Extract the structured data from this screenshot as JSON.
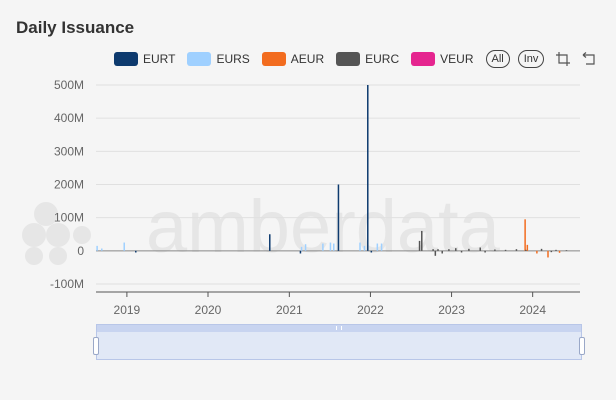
{
  "title": "Daily Issuance",
  "watermark": "amberdata",
  "controls": {
    "all_label": "All",
    "inv_label": "Inv"
  },
  "icons": {
    "box_select": "crop-select-icon",
    "reset": "reset-arrow-icon"
  },
  "chart_data": {
    "type": "bar",
    "title": "Daily Issuance",
    "xlabel": "",
    "ylabel": "",
    "ylim": [
      -100000000,
      500000000
    ],
    "yticks": [
      -100000000,
      0,
      100000000,
      200000000,
      300000000,
      400000000,
      500000000
    ],
    "ytick_labels": [
      "-100M",
      "0",
      "100M",
      "200M",
      "300M",
      "400M",
      "500M"
    ],
    "xlim": [
      "2018-08-15",
      "2024-08-01"
    ],
    "xtick_labels": [
      "2019",
      "2020",
      "2021",
      "2022",
      "2023",
      "2024"
    ],
    "grid": true,
    "legend_position": "top",
    "series": [
      {
        "name": "EURT",
        "color": "#0d3a6e",
        "points": [
          {
            "date": "2019-02-10",
            "value": -5000000
          },
          {
            "date": "2020-10-05",
            "value": 50000000
          },
          {
            "date": "2021-02-20",
            "value": -8000000
          },
          {
            "date": "2021-08-10",
            "value": 200000000
          },
          {
            "date": "2021-12-20",
            "value": 500000000
          },
          {
            "date": "2022-01-05",
            "value": -5000000
          }
        ]
      },
      {
        "name": "EURS",
        "color": "#9fd0ff",
        "points": [
          {
            "date": "2018-08-20",
            "value": 15000000
          },
          {
            "date": "2018-09-10",
            "value": 7000000
          },
          {
            "date": "2018-12-20",
            "value": 25000000
          },
          {
            "date": "2021-02-25",
            "value": 12000000
          },
          {
            "date": "2021-03-15",
            "value": 20000000
          },
          {
            "date": "2021-06-01",
            "value": 22000000
          },
          {
            "date": "2021-07-05",
            "value": 25000000
          },
          {
            "date": "2021-07-20",
            "value": 22000000
          },
          {
            "date": "2021-11-15",
            "value": 25000000
          },
          {
            "date": "2021-12-05",
            "value": 15000000
          },
          {
            "date": "2022-02-01",
            "value": 22000000
          },
          {
            "date": "2022-02-20",
            "value": 22000000
          }
        ]
      },
      {
        "name": "AEUR",
        "color": "#f26c1f",
        "points": [
          {
            "date": "2023-11-28",
            "value": 95000000
          },
          {
            "date": "2023-12-08",
            "value": 18000000
          },
          {
            "date": "2024-01-20",
            "value": -8000000
          },
          {
            "date": "2024-03-10",
            "value": -20000000
          },
          {
            "date": "2024-05-01",
            "value": -6000000
          }
        ]
      },
      {
        "name": "EURC",
        "color": "#555555",
        "points": [
          {
            "date": "2022-08-10",
            "value": 30000000
          },
          {
            "date": "2022-08-20",
            "value": 60000000
          },
          {
            "date": "2022-10-10",
            "value": 5000000
          },
          {
            "date": "2022-10-20",
            "value": -15000000
          },
          {
            "date": "2022-11-01",
            "value": 5000000
          },
          {
            "date": "2022-11-20",
            "value": -8000000
          },
          {
            "date": "2022-12-20",
            "value": 5000000
          },
          {
            "date": "2023-01-20",
            "value": 8000000
          },
          {
            "date": "2023-02-15",
            "value": -5000000
          },
          {
            "date": "2023-03-20",
            "value": 6000000
          },
          {
            "date": "2023-05-10",
            "value": 10000000
          },
          {
            "date": "2023-06-01",
            "value": -5000000
          },
          {
            "date": "2023-07-15",
            "value": 4000000
          },
          {
            "date": "2023-09-01",
            "value": 3000000
          },
          {
            "date": "2023-10-20",
            "value": 5000000
          },
          {
            "date": "2023-12-01",
            "value": 3000000
          },
          {
            "date": "2024-02-10",
            "value": 6000000
          },
          {
            "date": "2024-03-25",
            "value": -4000000
          },
          {
            "date": "2024-04-15",
            "value": 3000000
          },
          {
            "date": "2024-06-01",
            "value": 2000000
          }
        ]
      },
      {
        "name": "VEUR",
        "color": "#e5258f",
        "points": []
      }
    ]
  }
}
